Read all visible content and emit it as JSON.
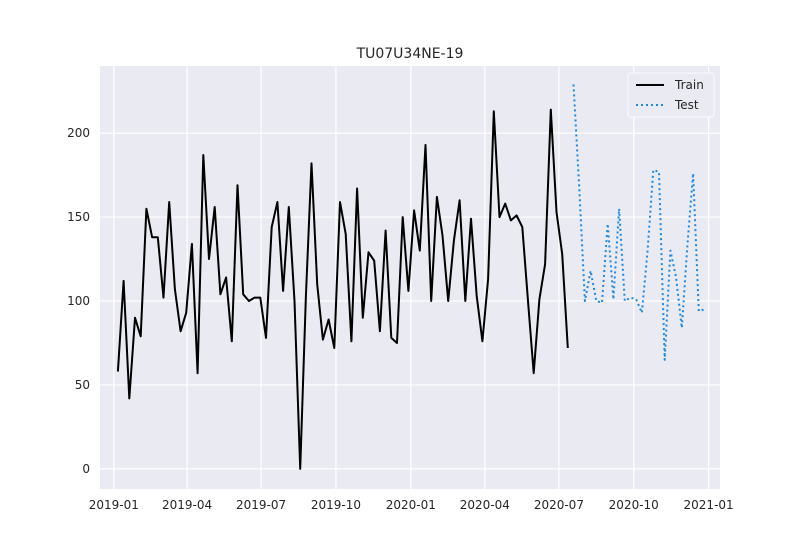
{
  "chart_data": {
    "type": "line",
    "title": "TU07U34NE-19",
    "xlabel": "",
    "ylabel": "",
    "x_ticks": [
      "2019-01",
      "2019-04",
      "2019-07",
      "2019-10",
      "2020-01",
      "2020-04",
      "2020-07",
      "2020-10",
      "2021-01"
    ],
    "y_ticks": [
      0,
      50,
      100,
      150,
      200
    ],
    "xlim": [
      "2018-12-15",
      "2021-01-15"
    ],
    "ylim": [
      -12,
      240
    ],
    "grid": true,
    "legend_position": "top-right",
    "series": [
      {
        "name": "Train",
        "color": "#000000",
        "style": "solid",
        "x": [
          "2019-01-06",
          "2019-01-13",
          "2019-01-20",
          "2019-01-27",
          "2019-02-03",
          "2019-02-10",
          "2019-02-17",
          "2019-02-24",
          "2019-03-03",
          "2019-03-10",
          "2019-03-17",
          "2019-03-24",
          "2019-03-31",
          "2019-04-07",
          "2019-04-14",
          "2019-04-21",
          "2019-04-28",
          "2019-05-05",
          "2019-05-12",
          "2019-05-19",
          "2019-05-26",
          "2019-06-02",
          "2019-06-09",
          "2019-06-16",
          "2019-06-23",
          "2019-06-30",
          "2019-07-07",
          "2019-07-14",
          "2019-07-21",
          "2019-07-28",
          "2019-08-04",
          "2019-08-11",
          "2019-08-18",
          "2019-08-25",
          "2019-09-01",
          "2019-09-08",
          "2019-09-15",
          "2019-09-22",
          "2019-09-29",
          "2019-10-06",
          "2019-10-13",
          "2019-10-20",
          "2019-10-27",
          "2019-11-03",
          "2019-11-10",
          "2019-11-17",
          "2019-11-24",
          "2019-12-01",
          "2019-12-08",
          "2019-12-15",
          "2019-12-22",
          "2019-12-29",
          "2020-01-05",
          "2020-01-12",
          "2020-01-19",
          "2020-01-26",
          "2020-02-02",
          "2020-02-09",
          "2020-02-16",
          "2020-02-23",
          "2020-03-01",
          "2020-03-08",
          "2020-03-15",
          "2020-03-22",
          "2020-03-29",
          "2020-04-05",
          "2020-04-12",
          "2020-04-19",
          "2020-04-26",
          "2020-05-03",
          "2020-05-10",
          "2020-05-17",
          "2020-05-24",
          "2020-05-31",
          "2020-06-07",
          "2020-06-14",
          "2020-06-21",
          "2020-06-28",
          "2020-07-05",
          "2020-07-12"
        ],
        "y": [
          58,
          112,
          42,
          90,
          79,
          155,
          138,
          138,
          102,
          159,
          107,
          82,
          93,
          134,
          57,
          187,
          125,
          156,
          104,
          114,
          76,
          169,
          104,
          100,
          102,
          102,
          78,
          144,
          159,
          106,
          156,
          100,
          0,
          103,
          182,
          110,
          77,
          89,
          72,
          159,
          140,
          76,
          167,
          90,
          129,
          124,
          82,
          142,
          78,
          75,
          150,
          106,
          154,
          130,
          193,
          100,
          162,
          139,
          100,
          136,
          160,
          100,
          149,
          103,
          76,
          113,
          213,
          150,
          158,
          148,
          151,
          144,
          100,
          57,
          101,
          122,
          214,
          153,
          128,
          72
        ]
      },
      {
        "name": "Test",
        "color": "#1e88e5",
        "style": "dotted",
        "x": [
          "2020-07-19",
          "2020-07-26",
          "2020-08-02",
          "2020-08-09",
          "2020-08-16",
          "2020-08-23",
          "2020-08-30",
          "2020-09-06",
          "2020-09-13",
          "2020-09-20",
          "2020-09-27",
          "2020-10-04",
          "2020-10-11",
          "2020-10-18",
          "2020-10-25",
          "2020-11-01",
          "2020-11-08",
          "2020-11-15",
          "2020-11-22",
          "2020-11-29",
          "2020-12-06",
          "2020-12-13",
          "2020-12-20",
          "2020-12-27"
        ],
        "y": [
          229,
          168,
          100,
          118,
          100,
          99,
          146,
          101,
          155,
          100,
          102,
          101,
          93,
          130,
          178,
          177,
          65,
          130,
          114,
          84,
          134,
          176,
          94,
          95
        ]
      }
    ]
  }
}
